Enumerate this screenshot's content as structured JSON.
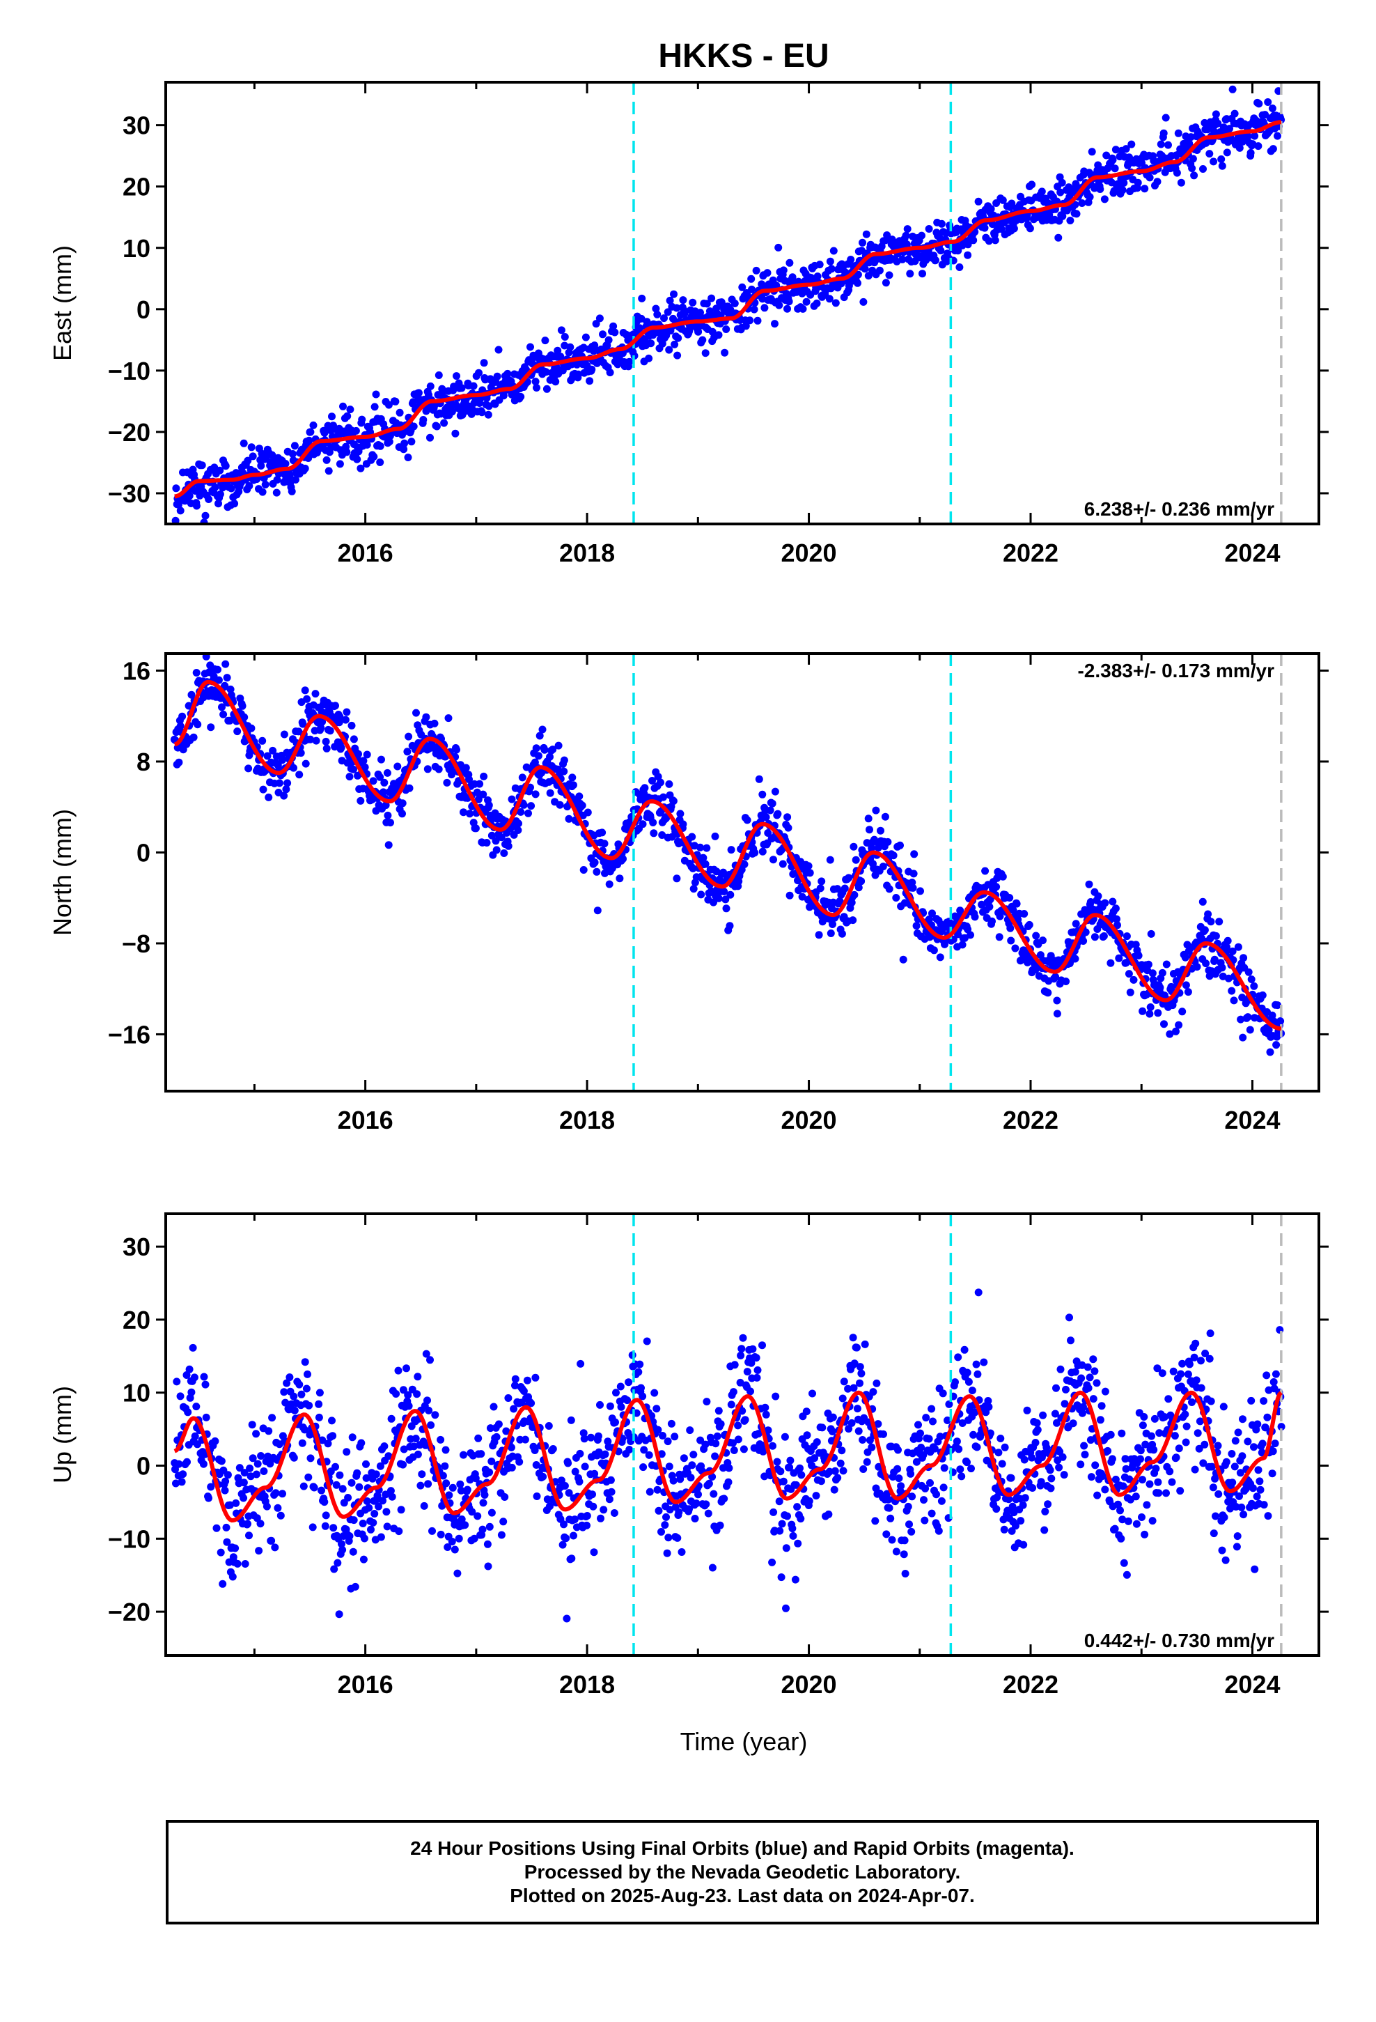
{
  "title": "HKKS - EU",
  "xlabel": "Time (year)",
  "caption": {
    "line1": "24 Hour Positions Using Final Orbits (blue) and Rapid Orbits (magenta).",
    "line2": "Processed by the Nevada Geodetic Laboratory.",
    "line3": "Plotted on 2025-Aug-23. Last data on 2024-Apr-07."
  },
  "colors": {
    "points": "#0000ff",
    "model": "#ff0000",
    "offsets": "#00e5ee",
    "last_data": "#bbbbbb",
    "frame": "#000000"
  },
  "chart_data": [
    {
      "type": "scatter",
      "panel": "east",
      "ylabel": "East (mm)",
      "rate_label": "6.238+/- 0.236 mm/yr",
      "rate_position": "bottom-right",
      "xlim": [
        2014.2,
        2024.6
      ],
      "ylim": [
        -35,
        37
      ],
      "xticks": [
        2016,
        2018,
        2020,
        2022,
        2024
      ],
      "yticks": [
        -30,
        -20,
        -10,
        0,
        10,
        20,
        30
      ],
      "offset_lines": [
        2018.42,
        2021.28
      ],
      "last_data_line": 2024.26,
      "model": {
        "x": [
          2014.28,
          2014.5,
          2014.8,
          2015.0,
          2015.3,
          2015.6,
          2016.0,
          2016.3,
          2016.6,
          2017.0,
          2017.3,
          2017.6,
          2018.0,
          2018.3,
          2018.6,
          2019.0,
          2019.3,
          2019.6,
          2020.0,
          2020.3,
          2020.6,
          2021.0,
          2021.3,
          2021.6,
          2022.0,
          2022.3,
          2022.6,
          2023.0,
          2023.3,
          2023.6,
          2024.0,
          2024.26
        ],
        "y": [
          -30.5,
          -28.0,
          -27.8,
          -27.0,
          -26.0,
          -21.5,
          -20.8,
          -19.5,
          -15.0,
          -14.0,
          -13.0,
          -9.0,
          -8.0,
          -6.5,
          -3.0,
          -2.0,
          -1.5,
          3.0,
          4.0,
          5.0,
          9.0,
          10.0,
          11.0,
          14.5,
          16.0,
          17.0,
          21.5,
          22.5,
          24.0,
          28.0,
          29.0,
          30.5
        ]
      },
      "scatter_spread": 1.9
    },
    {
      "type": "scatter",
      "panel": "north",
      "ylabel": "North (mm)",
      "rate_label": "-2.383+/- 0.173 mm/yr",
      "rate_position": "top-right",
      "xlim": [
        2014.2,
        2024.6
      ],
      "ylim": [
        -21,
        17.5
      ],
      "xticks": [
        2016,
        2018,
        2020,
        2022,
        2024
      ],
      "yticks": [
        -16,
        -8,
        0,
        8,
        16
      ],
      "offset_lines": [
        2018.42,
        2021.28
      ],
      "last_data_line": 2024.26,
      "model": {
        "x": [
          2014.28,
          2014.58,
          2015.22,
          2015.58,
          2016.22,
          2016.58,
          2017.22,
          2017.58,
          2018.22,
          2018.58,
          2019.22,
          2019.58,
          2020.22,
          2020.58,
          2021.22,
          2021.58,
          2022.22,
          2022.58,
          2023.22,
          2023.58,
          2024.26
        ],
        "y": [
          9.5,
          15.0,
          7.0,
          12.0,
          4.5,
          10.0,
          2.0,
          7.5,
          -0.5,
          4.5,
          -3.0,
          2.5,
          -5.5,
          0.0,
          -7.5,
          -3.5,
          -10.5,
          -5.5,
          -13.0,
          -8.0,
          -15.5
        ]
      },
      "scatter_spread": 1.3
    },
    {
      "type": "scatter",
      "panel": "up",
      "ylabel": "Up (mm)",
      "rate_label": "0.442+/- 0.730 mm/yr",
      "rate_position": "bottom-right",
      "xlim": [
        2014.2,
        2024.6
      ],
      "ylim": [
        -26,
        34.5
      ],
      "xticks": [
        2016,
        2018,
        2020,
        2022,
        2024
      ],
      "yticks": [
        -20,
        -10,
        0,
        10,
        20,
        30
      ],
      "offset_lines": [
        2018.42,
        2021.28
      ],
      "last_data_line": 2024.26,
      "model": {
        "x": [
          2014.28,
          2014.45,
          2014.8,
          2015.1,
          2015.45,
          2015.8,
          2016.1,
          2016.45,
          2016.8,
          2017.1,
          2017.45,
          2017.8,
          2018.1,
          2018.45,
          2018.8,
          2019.1,
          2019.45,
          2019.8,
          2020.1,
          2020.45,
          2020.8,
          2021.1,
          2021.45,
          2021.8,
          2022.1,
          2022.45,
          2022.8,
          2023.1,
          2023.45,
          2023.8,
          2024.1,
          2024.26
        ],
        "y": [
          2.0,
          6.5,
          -7.5,
          -3.0,
          7.0,
          -7.0,
          -3.0,
          7.5,
          -6.5,
          -2.5,
          8.0,
          -6.0,
          -2.0,
          9.0,
          -5.0,
          -1.0,
          9.5,
          -4.5,
          -0.5,
          10.0,
          -4.5,
          0.0,
          9.5,
          -4.0,
          0.0,
          10.0,
          -4.0,
          0.5,
          10.0,
          -3.5,
          1.0,
          10.0
        ]
      },
      "scatter_spread": 4.5
    }
  ]
}
